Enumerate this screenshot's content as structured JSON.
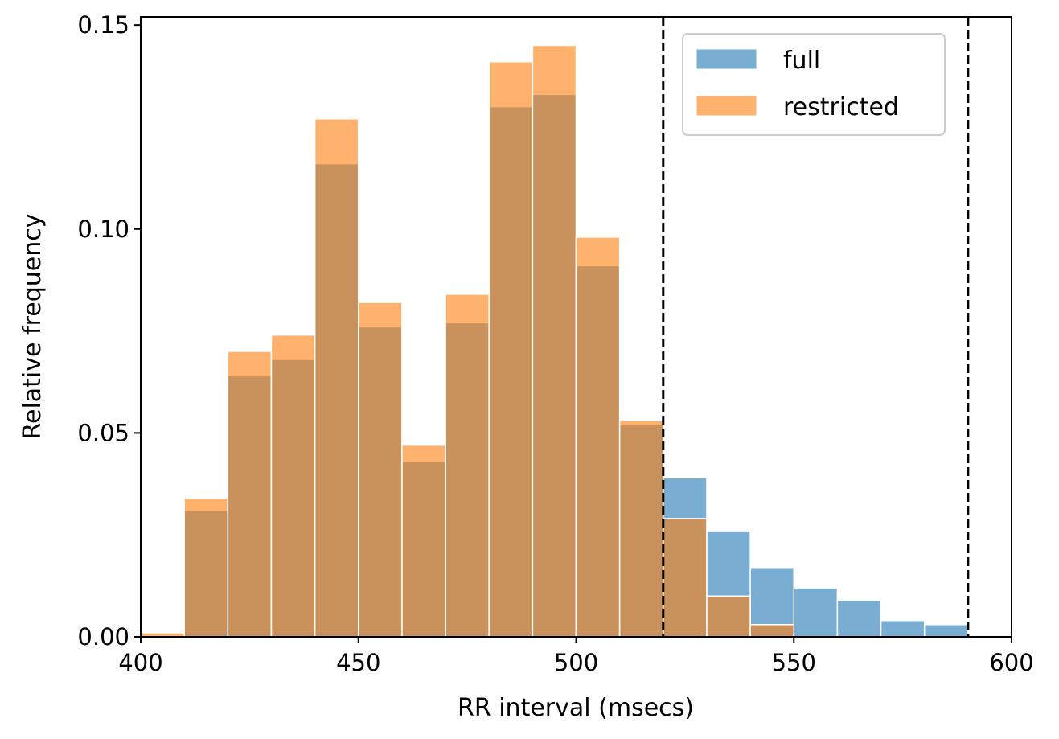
{
  "chart_data": {
    "type": "bar",
    "title": "",
    "xlabel": "RR interval (msecs)",
    "ylabel": "Relative frequency",
    "xlim": [
      400,
      600
    ],
    "ylim": [
      0,
      0.152
    ],
    "xticks": [
      "400",
      "450",
      "500",
      "550",
      "600"
    ],
    "yticks": [
      "0.00",
      "0.05",
      "0.10",
      "0.15"
    ],
    "grid": false,
    "legend_position": "top-right",
    "bin_edges": [
      400,
      410,
      420,
      430,
      440,
      450,
      460,
      470,
      480,
      490,
      500,
      510,
      520,
      530,
      540,
      550,
      560,
      570,
      580,
      590
    ],
    "bin_width": 10,
    "series": [
      {
        "name": "full",
        "color": "#1f77b4",
        "values": [
          0.0,
          0.031,
          0.064,
          0.068,
          0.116,
          0.076,
          0.043,
          0.077,
          0.13,
          0.133,
          0.091,
          0.052,
          0.039,
          0.026,
          0.017,
          0.012,
          0.009,
          0.004,
          0.003
        ]
      },
      {
        "name": "restricted",
        "color": "#ff7f0e",
        "values": [
          0.001,
          0.034,
          0.07,
          0.074,
          0.127,
          0.082,
          0.047,
          0.084,
          0.141,
          0.145,
          0.098,
          0.053,
          0.029,
          0.01,
          0.003,
          0.0,
          0.0,
          0.0,
          0.0
        ]
      }
    ],
    "vlines": [
      520,
      590
    ],
    "vline_style": "dashed"
  }
}
